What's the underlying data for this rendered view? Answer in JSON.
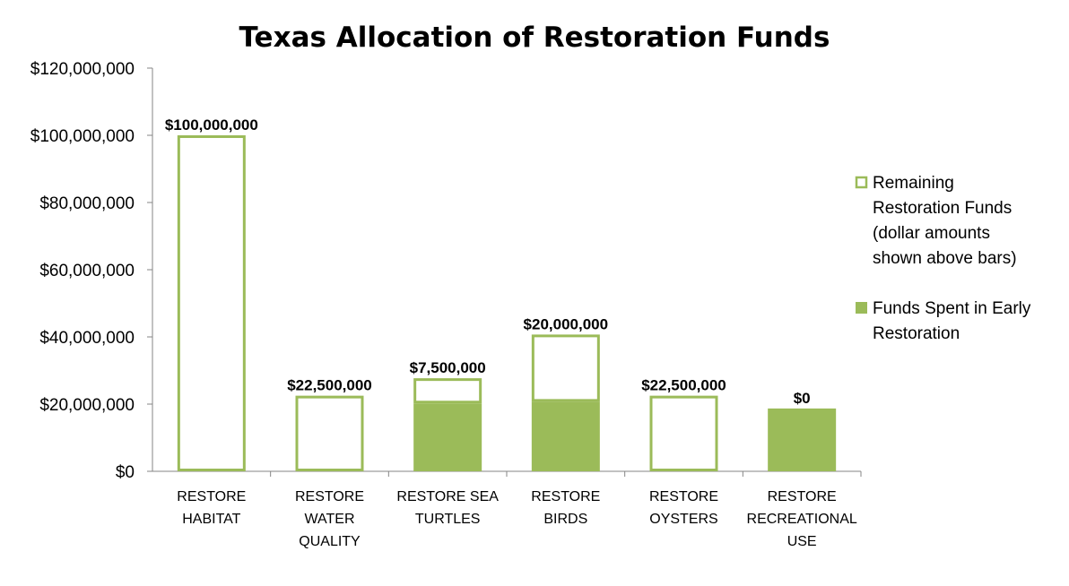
{
  "chart_data": {
    "type": "bar",
    "stacked": true,
    "title": "Texas Allocation of Restoration Funds",
    "xlabel": "",
    "ylabel": "",
    "ylim": [
      0,
      120000000
    ],
    "y_ticks": [
      "$0",
      "$20,000,000",
      "$40,000,000",
      "$60,000,000",
      "$80,000,000",
      "$100,000,000",
      "$120,000,000"
    ],
    "categories": [
      [
        "RESTORE",
        "HABITAT"
      ],
      [
        "RESTORE",
        "WATER",
        "QUALITY"
      ],
      [
        "RESTORE SEA",
        "TURTLES"
      ],
      [
        "RESTORE",
        "BIRDS"
      ],
      [
        "RESTORE",
        "OYSTERS"
      ],
      [
        "RESTORE",
        "RECREATIONAL",
        "USE"
      ]
    ],
    "series": [
      {
        "name": "Funds Spent in Early Restoration",
        "style": "filled",
        "color": "#9bbb59",
        "values": [
          0,
          0,
          20200000,
          20700000,
          0,
          18700000
        ]
      },
      {
        "name": "Remaining Restoration Funds (dollar amounts shown above bars)",
        "style": "outline",
        "color": "#9bbb59",
        "values": [
          100000000,
          22500000,
          7500000,
          20000000,
          22500000,
          0
        ]
      }
    ],
    "data_labels": [
      "$100,000,000",
      "$22,500,000",
      "$7,500,000",
      "$20,000,000",
      "$22,500,000",
      "$0"
    ],
    "legend": {
      "position": "right",
      "entries": [
        {
          "lines": [
            "Remaining",
            "Restoration Funds",
            "(dollar amounts",
            "shown above bars)"
          ],
          "style": "outline"
        },
        {
          "lines": [
            "Funds Spent in Early",
            "Restoration"
          ],
          "style": "filled"
        }
      ]
    },
    "grid": false
  }
}
